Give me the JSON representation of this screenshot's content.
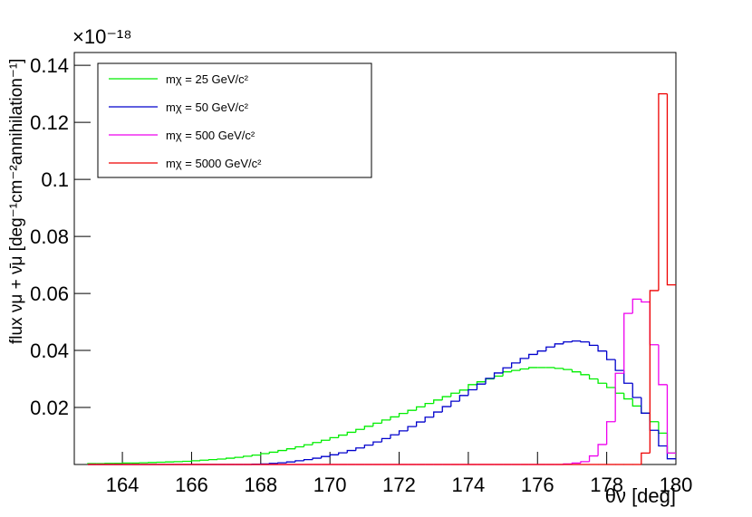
{
  "chart_data": {
    "type": "histogram",
    "ylabel": "flux νμ + ν̄μ [deg⁻¹cm⁻²annihilation⁻¹]",
    "xlabel": "θν [deg]",
    "y_exponent": "×10⁻¹⁸",
    "bins": [
      163,
      163.25,
      163.5,
      163.75,
      164,
      164.25,
      164.5,
      164.75,
      165,
      165.25,
      165.5,
      165.75,
      166,
      166.25,
      166.5,
      166.75,
      167,
      167.25,
      167.5,
      167.75,
      168,
      168.25,
      168.5,
      168.75,
      169,
      169.25,
      169.5,
      169.75,
      170,
      170.25,
      170.5,
      170.75,
      171,
      171.25,
      171.5,
      171.75,
      172,
      172.25,
      172.5,
      172.75,
      173,
      173.25,
      173.5,
      173.75,
      174,
      174.25,
      174.5,
      174.75,
      175,
      175.25,
      175.5,
      175.75,
      176,
      176.25,
      176.5,
      176.75,
      177,
      177.25,
      177.5,
      177.75,
      178,
      178.25,
      178.5,
      178.75,
      179,
      179.25,
      179.5,
      179.75,
      180
    ],
    "series": [
      {
        "name": "mχ = 25 GeV/c²",
        "color": "#00ee00",
        "values": [
          0.0003,
          0.0003,
          0.0004,
          0.0004,
          0.0005,
          0.0005,
          0.0006,
          0.0007,
          0.0008,
          0.0009,
          0.001,
          0.0011,
          0.0013,
          0.0015,
          0.0017,
          0.0019,
          0.0022,
          0.0025,
          0.0029,
          0.0033,
          0.0038,
          0.0043,
          0.0049,
          0.0055,
          0.0062,
          0.0069,
          0.0077,
          0.0085,
          0.0094,
          0.0103,
          0.0113,
          0.0123,
          0.0134,
          0.0145,
          0.0156,
          0.0167,
          0.0179,
          0.019,
          0.0202,
          0.0214,
          0.0226,
          0.0238,
          0.025,
          0.0261,
          0.028,
          0.029,
          0.03,
          0.031,
          0.0325,
          0.033,
          0.0335,
          0.034,
          0.034,
          0.034,
          0.0337,
          0.0333,
          0.0325,
          0.0315,
          0.03,
          0.0285,
          0.027,
          0.025,
          0.023,
          0.0205,
          0.018,
          0.015,
          0.011,
          0.004
        ]
      },
      {
        "name": "mχ = 50 GeV/c²",
        "color": "#0000cc",
        "values": [
          0,
          0,
          0,
          0,
          0,
          0,
          0,
          0,
          0,
          0,
          0,
          0,
          0,
          0,
          0,
          0,
          0,
          0,
          0,
          0.0001,
          0.0002,
          0.0004,
          0.0006,
          0.0009,
          0.0013,
          0.0017,
          0.0022,
          0.0028,
          0.0034,
          0.0041,
          0.0049,
          0.0058,
          0.0068,
          0.0079,
          0.0091,
          0.0104,
          0.0118,
          0.0133,
          0.0149,
          0.0166,
          0.0184,
          0.0203,
          0.0222,
          0.0242,
          0.0262,
          0.0282,
          0.0302,
          0.0321,
          0.0339,
          0.0356,
          0.0372,
          0.0386,
          0.0398,
          0.0412,
          0.0423,
          0.043,
          0.0433,
          0.043,
          0.0418,
          0.0398,
          0.0368,
          0.033,
          0.0285,
          0.0235,
          0.018,
          0.012,
          0.0065,
          0.002
        ]
      },
      {
        "name": "mχ = 500 GeV/c²",
        "color": "#ee00ee",
        "values": [
          0,
          0,
          0,
          0,
          0,
          0,
          0,
          0,
          0,
          0,
          0,
          0,
          0,
          0,
          0,
          0,
          0,
          0,
          0,
          0,
          0,
          0,
          0,
          0,
          0,
          0,
          0,
          0,
          0,
          0,
          0,
          0,
          0,
          0,
          0,
          0,
          0,
          0,
          0,
          0,
          0,
          0,
          0,
          0,
          0,
          0,
          0,
          0,
          0,
          0,
          0,
          0,
          0,
          0,
          0,
          0.0002,
          0.0005,
          0.001,
          0.003,
          0.007,
          0.015,
          0.032,
          0.053,
          0.058,
          0.057,
          0.042,
          0.028,
          0.004
        ]
      },
      {
        "name": "mχ = 5000 GeV/c²",
        "color": "#ee0000",
        "values": [
          0,
          0,
          0,
          0,
          0,
          0,
          0,
          0,
          0,
          0,
          0,
          0,
          0,
          0,
          0,
          0,
          0,
          0,
          0,
          0,
          0,
          0,
          0,
          0,
          0,
          0,
          0,
          0,
          0,
          0,
          0,
          0,
          0,
          0,
          0,
          0,
          0,
          0,
          0,
          0,
          0,
          0,
          0,
          0,
          0,
          0,
          0,
          0,
          0,
          0,
          0,
          0,
          0,
          0,
          0,
          0,
          0,
          0,
          0,
          0,
          0,
          0,
          0,
          0,
          0.004,
          0.061,
          0.13,
          0.063
        ]
      }
    ],
    "xlim": [
      162.61,
      180
    ],
    "ylim": [
      0,
      0.1445
    ],
    "xticks": [
      164,
      166,
      168,
      170,
      172,
      174,
      176,
      178,
      180
    ],
    "yticks": [
      0.02,
      0.04,
      0.06,
      0.08,
      0.1,
      0.12,
      0.14
    ],
    "legend": "upper left"
  }
}
